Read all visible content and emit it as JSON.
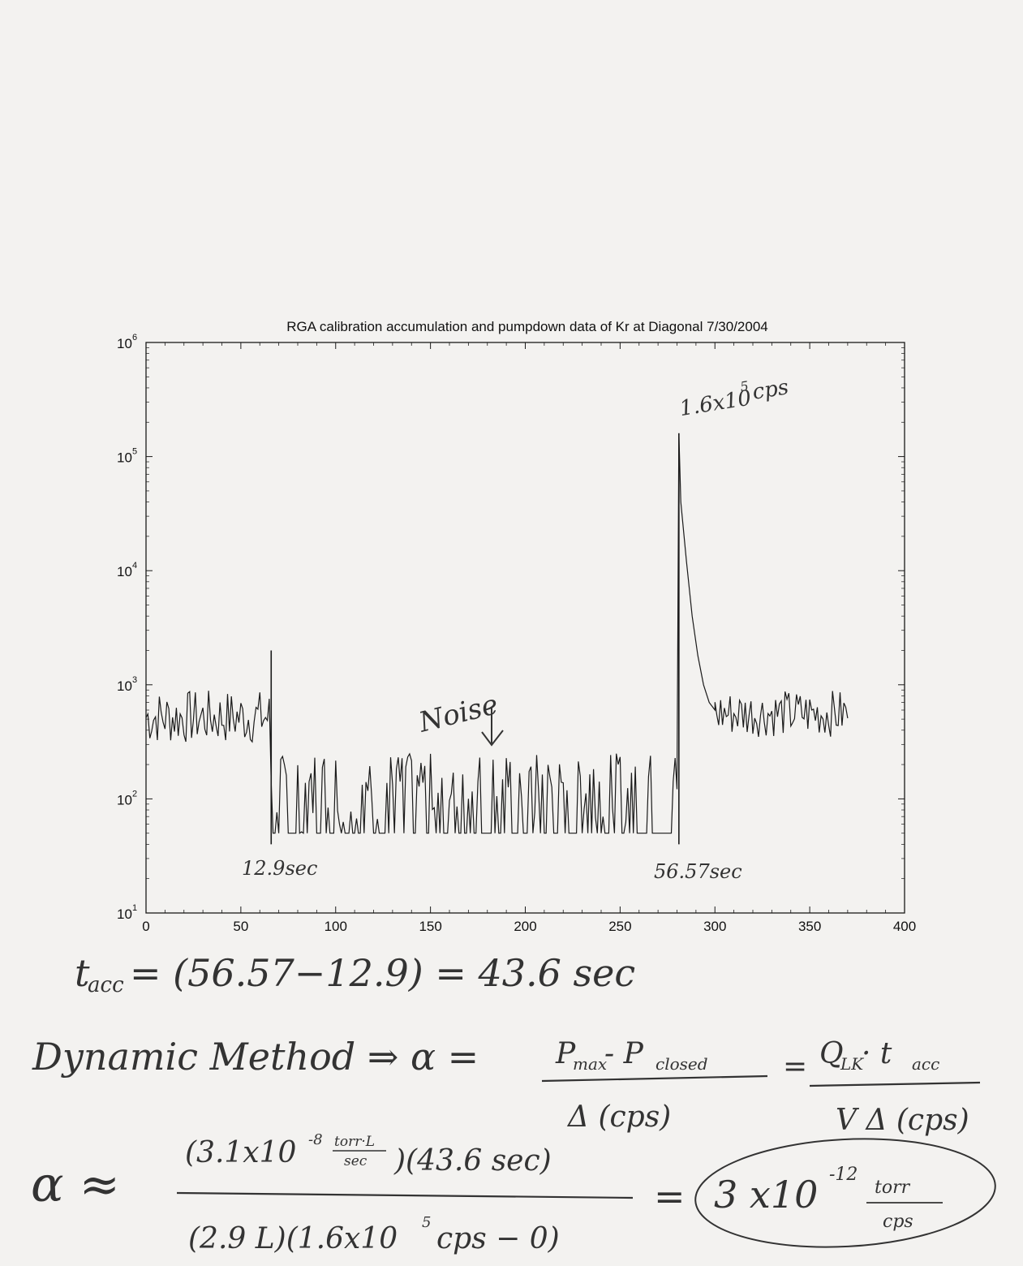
{
  "chart_data": {
    "type": "line",
    "title": "RGA calibration accumulation and pumpdown data of Kr at Diagonal 7/30/2004",
    "xlabel": "",
    "ylabel": "",
    "xlim": [
      0,
      400
    ],
    "ylim": [
      10,
      1000000
    ],
    "yscale": "log",
    "grid": false,
    "x_ticks": [
      0,
      50,
      100,
      150,
      200,
      250,
      300,
      350,
      400
    ],
    "y_ticks": [
      {
        "base": "10",
        "exp": "1",
        "value": 10
      },
      {
        "base": "10",
        "exp": "2",
        "value": 100
      },
      {
        "base": "10",
        "exp": "3",
        "value": 1000
      },
      {
        "base": "10",
        "exp": "4",
        "value": 10000
      },
      {
        "base": "10",
        "exp": "5",
        "value": 100000
      },
      {
        "base": "10",
        "exp": "6",
        "value": 1000000
      }
    ],
    "series": [
      {
        "segments": [
          {
            "phase": "pre-accumulation",
            "x_range": [
              0,
              66
            ],
            "y_range": [
              300,
              900
            ]
          },
          {
            "phase": "accumulation (noise)",
            "x_range": [
              66,
              281
            ],
            "y_range": [
              50,
              250
            ]
          },
          {
            "phase": "pumpdown peak",
            "x": [
              281,
              282,
              285,
              288,
              291,
              294,
              297,
              300
            ],
            "y": [
              160000,
              40000,
              12000,
              4000,
              1800,
              1000,
              700,
              600
            ]
          },
          {
            "phase": "post-pumpdown",
            "x_range": [
              300,
              371
            ],
            "y_range": [
              350,
              900
            ]
          }
        ]
      }
    ],
    "markers": [
      {
        "x": 66,
        "y_top": 2000,
        "y_bottom": 40,
        "label": "12.9sec"
      },
      {
        "x": 281,
        "y_top": 160000,
        "y_bottom": 40,
        "label": "56.57sec"
      }
    ],
    "annotations": [
      {
        "text": "1.6x10",
        "sup": "5",
        "suffix": "cps"
      },
      {
        "text": "Noise"
      }
    ]
  },
  "handwriting": {
    "line1": "t",
    "line1_sub": "acc",
    "line1_rest": "= (56.57−12.9) = 43.6 sec",
    "dynamic_method": "Dynamic Method ⇒ α =",
    "frac1_num": "P",
    "frac1_num_sub1": "max",
    "frac1_num_mid": " - P",
    "frac1_num_sub2": "closed",
    "frac1_den": "Δ (cps)",
    "eq2": "=",
    "frac2_num": "Q",
    "frac2_num_sub": "LK",
    "frac2_num_rest": " · t",
    "frac2_num_sub2": "acc",
    "frac2_den": "V Δ (cps)",
    "alpha_approx": "α ≈",
    "frac3_num_a": "(3.1x10",
    "frac3_num_exp": "-8",
    "frac3_num_unit_top": "torr·L",
    "frac3_num_unit_bot": "sec",
    "frac3_num_b": ")(43.6 sec)",
    "frac3_den_a": "(2.9 L)(1.6x10",
    "frac3_den_exp": "5",
    "frac3_den_b": "cps − 0)",
    "eq3": "=",
    "result_a": "3 x10",
    "result_exp": "-12",
    "result_unit_top": "torr",
    "result_unit_bot": "cps"
  },
  "colors": {
    "paper": "#f3f2f0",
    "ink": "#1a1a1a",
    "pencil": "#333333"
  }
}
